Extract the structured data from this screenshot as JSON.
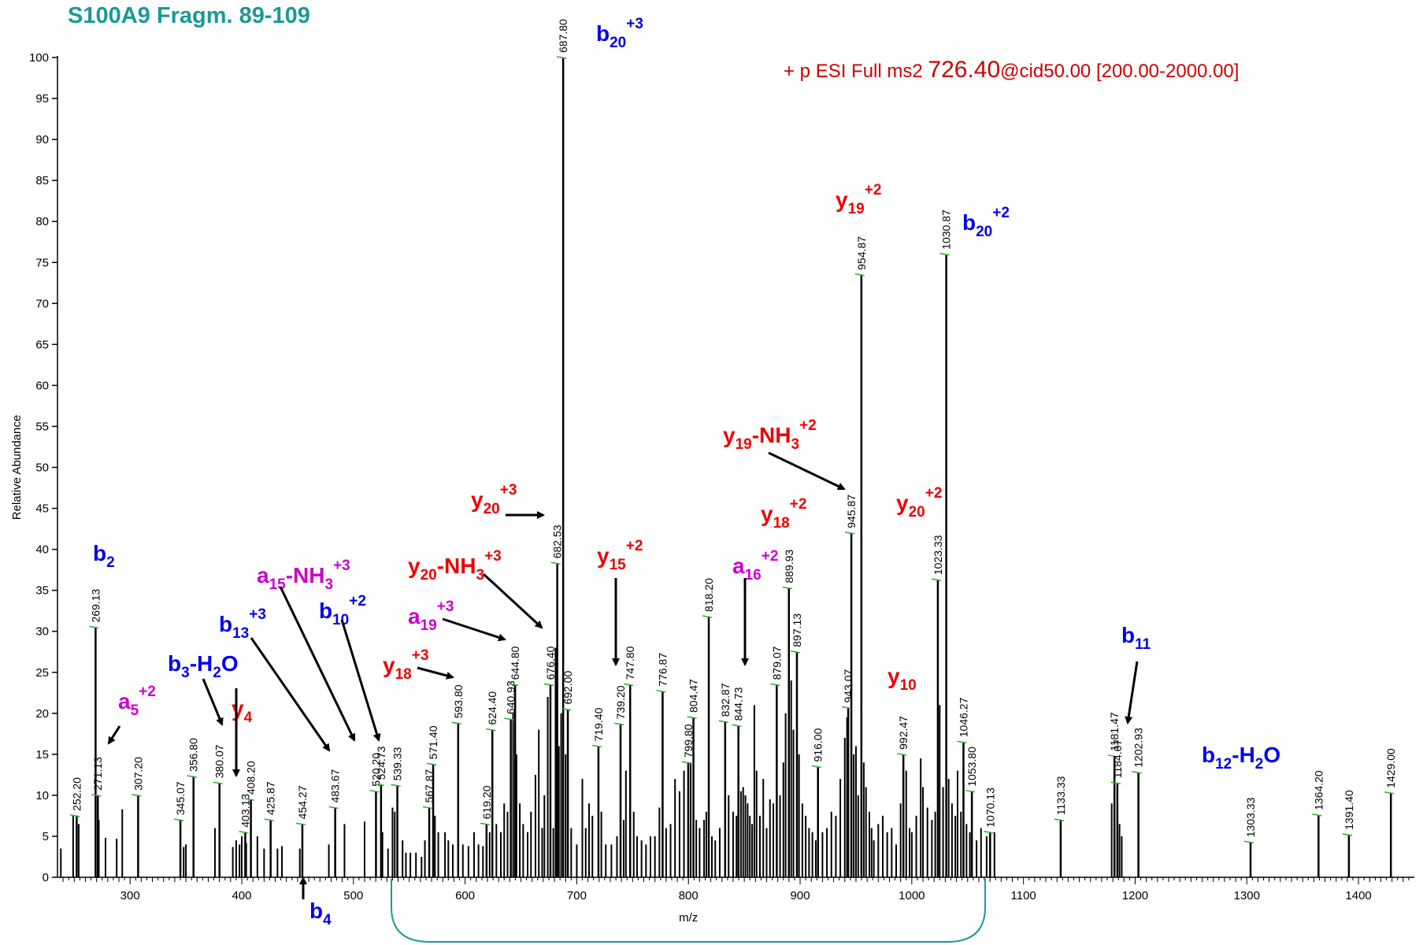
{
  "title": "S100A9 Fragm. 89-109",
  "scan_header": {
    "prefix": "+ p ESI Full ms2",
    "precursor": "726.40",
    "suffix": "@cid50.00 [200.00-2000.00]"
  },
  "colors": {
    "title": "#1a9a96",
    "header": "#cc0000",
    "b_ion": "#0000ee",
    "y_ion": "#ee0000",
    "a_ion": "#cc00cc",
    "peaks": "#000000",
    "bracket": "#1a9a96",
    "minor_tick": "#33aa33"
  },
  "chart_data": {
    "type": "bar",
    "title": "S100A9 Fragm. 89-109",
    "xlabel": "m/z",
    "ylabel": "Relative Abundance",
    "xlim": [
      235,
      1450
    ],
    "ylim": [
      0,
      100
    ],
    "x_ticks": [
      300,
      400,
      500,
      600,
      700,
      800,
      900,
      1000,
      1100,
      1200,
      1300,
      1400
    ],
    "y_ticks": [
      0,
      5,
      10,
      15,
      20,
      25,
      30,
      35,
      40,
      45,
      50,
      55,
      60,
      65,
      70,
      75,
      80,
      85,
      90,
      95,
      100
    ],
    "grid": false,
    "labeled_peaks": [
      {
        "mz": 252.2,
        "label": "252.20",
        "intensity": 7.5
      },
      {
        "mz": 269.13,
        "label": "269.13",
        "intensity": 30.5
      },
      {
        "mz": 271.13,
        "label": "271.13",
        "intensity": 10
      },
      {
        "mz": 307.2,
        "label": "307.20",
        "intensity": 10
      },
      {
        "mz": 345.07,
        "label": "345.07",
        "intensity": 7
      },
      {
        "mz": 356.8,
        "label": "356.80",
        "intensity": 12.3
      },
      {
        "mz": 380.07,
        "label": "380.07",
        "intensity": 11.5
      },
      {
        "mz": 403.13,
        "label": "403.13",
        "intensity": 5.5
      },
      {
        "mz": 408.2,
        "label": "408.20",
        "intensity": 9.5
      },
      {
        "mz": 425.87,
        "label": "425.87",
        "intensity": 7
      },
      {
        "mz": 454.27,
        "label": "454.27",
        "intensity": 6.5
      },
      {
        "mz": 483.67,
        "label": "483.67",
        "intensity": 8.5
      },
      {
        "mz": 520.2,
        "label": "520.20",
        "intensity": 10.5
      },
      {
        "mz": 524.73,
        "label": "524.73",
        "intensity": 11.3
      },
      {
        "mz": 539.33,
        "label": "539.33",
        "intensity": 11.2
      },
      {
        "mz": 567.87,
        "label": "567.87",
        "intensity": 8.5
      },
      {
        "mz": 571.4,
        "label": "571.40",
        "intensity": 13.8
      },
      {
        "mz": 593.8,
        "label": "593.80",
        "intensity": 18.8
      },
      {
        "mz": 619.2,
        "label": "619.20",
        "intensity": 6.5
      },
      {
        "mz": 624.4,
        "label": "624.40",
        "intensity": 18
      },
      {
        "mz": 640.93,
        "label": "640.93",
        "intensity": 19.3
      },
      {
        "mz": 644.8,
        "label": "644.80",
        "intensity": 23.5
      },
      {
        "mz": 676.4,
        "label": "676.40",
        "intensity": 23.5
      },
      {
        "mz": 682.53,
        "label": "682.53",
        "intensity": 38.3
      },
      {
        "mz": 687.8,
        "label": "687.80",
        "intensity": 100
      },
      {
        "mz": 692.0,
        "label": "692.00",
        "intensity": 20.5
      },
      {
        "mz": 719.4,
        "label": "719.40",
        "intensity": 16
      },
      {
        "mz": 739.2,
        "label": "739.20",
        "intensity": 18.7
      },
      {
        "mz": 747.8,
        "label": "747.80",
        "intensity": 23.5
      },
      {
        "mz": 776.87,
        "label": "776.87",
        "intensity": 22.7
      },
      {
        "mz": 799.8,
        "label": "799.80",
        "intensity": 14
      },
      {
        "mz": 804.47,
        "label": "804.47",
        "intensity": 19.5
      },
      {
        "mz": 818.2,
        "label": "818.20",
        "intensity": 31.8
      },
      {
        "mz": 832.87,
        "label": "832.87",
        "intensity": 19
      },
      {
        "mz": 844.73,
        "label": "844.73",
        "intensity": 18.5
      },
      {
        "mz": 879.07,
        "label": "879.07",
        "intensity": 23.5
      },
      {
        "mz": 889.93,
        "label": "889.93",
        "intensity": 35.3
      },
      {
        "mz": 897.13,
        "label": "897.13",
        "intensity": 27.5
      },
      {
        "mz": 916.0,
        "label": "916.00",
        "intensity": 13.5
      },
      {
        "mz": 943.07,
        "label": "943.07",
        "intensity": 20.7
      },
      {
        "mz": 945.87,
        "label": "945.87",
        "intensity": 42
      },
      {
        "mz": 954.87,
        "label": "954.87",
        "intensity": 73.5
      },
      {
        "mz": 992.47,
        "label": "992.47",
        "intensity": 15
      },
      {
        "mz": 1023.33,
        "label": "1023.33",
        "intensity": 36.3
      },
      {
        "mz": 1030.87,
        "label": "1030.87",
        "intensity": 76
      },
      {
        "mz": 1046.27,
        "label": "1046.27",
        "intensity": 16.5
      },
      {
        "mz": 1053.8,
        "label": "1053.80",
        "intensity": 10.5
      },
      {
        "mz": 1070.13,
        "label": "1070.13",
        "intensity": 5.5
      },
      {
        "mz": 1133.33,
        "label": "1133.33",
        "intensity": 7
      },
      {
        "mz": 1181.47,
        "label": "1181.47",
        "intensity": 14.8
      },
      {
        "mz": 1184.07,
        "label": "1184.07",
        "intensity": 11.5
      },
      {
        "mz": 1202.93,
        "label": "1202.93",
        "intensity": 12.8
      },
      {
        "mz": 1303.33,
        "label": "1303.33",
        "intensity": 4.3
      },
      {
        "mz": 1364.2,
        "label": "1364.20",
        "intensity": 7.6
      },
      {
        "mz": 1391.4,
        "label": "1391.40",
        "intensity": 5.2
      },
      {
        "mz": 1429.0,
        "label": "1429.00",
        "intensity": 10.3
      }
    ],
    "minor_peaks": [
      [
        238,
        3.5
      ],
      [
        249,
        7.5
      ],
      [
        254,
        6.5
      ],
      [
        272,
        7
      ],
      [
        278,
        4.8
      ],
      [
        288,
        4.7
      ],
      [
        293,
        8.3
      ],
      [
        348,
        3.7
      ],
      [
        350,
        4
      ],
      [
        376,
        6
      ],
      [
        392,
        3.7
      ],
      [
        395,
        4.5
      ],
      [
        398,
        4
      ],
      [
        400,
        5
      ],
      [
        404,
        4.2
      ],
      [
        414,
        5
      ],
      [
        420,
        3.5
      ],
      [
        432,
        3.5
      ],
      [
        436,
        3.8
      ],
      [
        452,
        3.5
      ],
      [
        478,
        4
      ],
      [
        492,
        6.5
      ],
      [
        510,
        6.8
      ],
      [
        526,
        5.5
      ],
      [
        531,
        3.5
      ],
      [
        535,
        8.5
      ],
      [
        537,
        8
      ],
      [
        544,
        4.5
      ],
      [
        547,
        3
      ],
      [
        551,
        3
      ],
      [
        556,
        3
      ],
      [
        561,
        2.5
      ],
      [
        564,
        4.5
      ],
      [
        573,
        7.5
      ],
      [
        576,
        5.5
      ],
      [
        582,
        5.5
      ],
      [
        585,
        4.5
      ],
      [
        589,
        4
      ],
      [
        598,
        4
      ],
      [
        603,
        3.8
      ],
      [
        608,
        5.5
      ],
      [
        612,
        4
      ],
      [
        616,
        3.8
      ],
      [
        622,
        5.5
      ],
      [
        628,
        6.5
      ],
      [
        632,
        5.5
      ],
      [
        635,
        9
      ],
      [
        638,
        8
      ],
      [
        643,
        20
      ],
      [
        646,
        15
      ],
      [
        649,
        9
      ],
      [
        652,
        6.5
      ],
      [
        656,
        5.5
      ],
      [
        659,
        8
      ],
      [
        663,
        12.5
      ],
      [
        666,
        18
      ],
      [
        669,
        6
      ],
      [
        671,
        10
      ],
      [
        674,
        22
      ],
      [
        679,
        6
      ],
      [
        681,
        28
      ],
      [
        684,
        16
      ],
      [
        686,
        20
      ],
      [
        690,
        15
      ],
      [
        695,
        6
      ],
      [
        700,
        4
      ],
      [
        705,
        12
      ],
      [
        708,
        6
      ],
      [
        711,
        9
      ],
      [
        714,
        7.5
      ],
      [
        722,
        8
      ],
      [
        726,
        4
      ],
      [
        731,
        4
      ],
      [
        736,
        5
      ],
      [
        742,
        7
      ],
      [
        744,
        13
      ],
      [
        751,
        8
      ],
      [
        754,
        5
      ],
      [
        758,
        4.5
      ],
      [
        762,
        4
      ],
      [
        766,
        5
      ],
      [
        770,
        5
      ],
      [
        774,
        8.5
      ],
      [
        780,
        6
      ],
      [
        784,
        6.5
      ],
      [
        788,
        12
      ],
      [
        792,
        10.5
      ],
      [
        796,
        13
      ],
      [
        802,
        14
      ],
      [
        807,
        7
      ],
      [
        810,
        6
      ],
      [
        814,
        7
      ],
      [
        816,
        8
      ],
      [
        821,
        5
      ],
      [
        824,
        4.5
      ],
      [
        828,
        6
      ],
      [
        836,
        10
      ],
      [
        840,
        8
      ],
      [
        843,
        7.5
      ],
      [
        847,
        10.5
      ],
      [
        849,
        11
      ],
      [
        851,
        10
      ],
      [
        853,
        9
      ],
      [
        855,
        7.5
      ],
      [
        857,
        6.5
      ],
      [
        859,
        21
      ],
      [
        861,
        13
      ],
      [
        864,
        7.5
      ],
      [
        867,
        12
      ],
      [
        870,
        6
      ],
      [
        873,
        9.5
      ],
      [
        876,
        9
      ],
      [
        882,
        10
      ],
      [
        885,
        14
      ],
      [
        887,
        20
      ],
      [
        892,
        24
      ],
      [
        894,
        18
      ],
      [
        899,
        15
      ],
      [
        902,
        9
      ],
      [
        905,
        7.5
      ],
      [
        908,
        6
      ],
      [
        911,
        5.5
      ],
      [
        914,
        4.5
      ],
      [
        920,
        5.5
      ],
      [
        924,
        6
      ],
      [
        928,
        8
      ],
      [
        932,
        7.5
      ],
      [
        936,
        12
      ],
      [
        940,
        17
      ],
      [
        942,
        19.5
      ],
      [
        948,
        15
      ],
      [
        950,
        16
      ],
      [
        952,
        10
      ],
      [
        957,
        14
      ],
      [
        959,
        11
      ],
      [
        962,
        8
      ],
      [
        964,
        6
      ],
      [
        966,
        4.5
      ],
      [
        970,
        6.5
      ],
      [
        974,
        7.5
      ],
      [
        978,
        5.5
      ],
      [
        982,
        6
      ],
      [
        986,
        4
      ],
      [
        990,
        9
      ],
      [
        995,
        13
      ],
      [
        998,
        6
      ],
      [
        1000,
        5.5
      ],
      [
        1004,
        7.5
      ],
      [
        1008,
        14.5
      ],
      [
        1010,
        11
      ],
      [
        1014,
        8.5
      ],
      [
        1018,
        7
      ],
      [
        1021,
        8
      ],
      [
        1025,
        21
      ],
      [
        1028,
        11
      ],
      [
        1033,
        12
      ],
      [
        1036,
        9
      ],
      [
        1039,
        7.5
      ],
      [
        1041,
        13
      ],
      [
        1044,
        8
      ],
      [
        1049,
        6.5
      ],
      [
        1052,
        5.5
      ],
      [
        1058,
        4.5
      ],
      [
        1062,
        6
      ],
      [
        1067,
        5
      ],
      [
        1074,
        5.5
      ],
      [
        1179,
        9
      ],
      [
        1186,
        6.5
      ],
      [
        1188,
        5
      ]
    ],
    "annotations": [
      {
        "ion": "b",
        "sub": "2",
        "sup": "",
        "type": "b_ion"
      },
      {
        "ion": "a",
        "sub": "5",
        "sup": "+2",
        "type": "a_ion"
      },
      {
        "ion": "b",
        "sub": "3",
        "sup": "",
        "suffix": "-H",
        "suffix_sub": "2",
        "suffix_end": "O",
        "type": "b_ion"
      },
      {
        "ion": "y",
        "sub": "4",
        "sup": "",
        "type": "y_ion"
      },
      {
        "ion": "b",
        "sub": "13",
        "sup": "+3",
        "type": "b_ion"
      },
      {
        "ion": "a",
        "sub": "15",
        "sup": "+3",
        "suffix": "-NH",
        "suffix_sub": "3",
        "type": "a_ion"
      },
      {
        "ion": "b",
        "sub": "10",
        "sup": "+2",
        "type": "b_ion"
      },
      {
        "ion": "b",
        "sub": "4",
        "sup": "",
        "type": "b_ion"
      },
      {
        "ion": "y",
        "sub": "18",
        "sup": "+3",
        "type": "y_ion"
      },
      {
        "ion": "a",
        "sub": "19",
        "sup": "+3",
        "type": "a_ion"
      },
      {
        "ion": "y",
        "sub": "20",
        "sup": "+3",
        "suffix": "-NH",
        "suffix_sub": "3",
        "type": "y_ion"
      },
      {
        "ion": "y",
        "sub": "20",
        "sup": "+3",
        "type": "y_ion"
      },
      {
        "ion": "b",
        "sub": "20",
        "sup": "+3",
        "type": "b_ion"
      },
      {
        "ion": "y",
        "sub": "15",
        "sup": "+2",
        "type": "y_ion"
      },
      {
        "ion": "a",
        "sub": "16",
        "sup": "+2",
        "type": "a_ion"
      },
      {
        "ion": "y",
        "sub": "18",
        "sup": "+2",
        "type": "y_ion"
      },
      {
        "ion": "y",
        "sub": "19",
        "sup": "+2",
        "suffix": "-NH",
        "suffix_sub": "3",
        "type": "y_ion"
      },
      {
        "ion": "y",
        "sub": "19",
        "sup": "+2",
        "type": "y_ion"
      },
      {
        "ion": "b",
        "sub": "20",
        "sup": "+2",
        "type": "b_ion"
      },
      {
        "ion": "y",
        "sub": "20",
        "sup": "+2",
        "type": "y_ion"
      },
      {
        "ion": "y",
        "sub": "10",
        "sup": "",
        "type": "y_ion"
      },
      {
        "ion": "b",
        "sub": "11",
        "sup": "",
        "type": "b_ion"
      },
      {
        "ion": "b",
        "sub": "12",
        "sup": "",
        "suffix": "-H",
        "suffix_sub": "2",
        "suffix_end": "O",
        "type": "b_ion"
      }
    ]
  }
}
